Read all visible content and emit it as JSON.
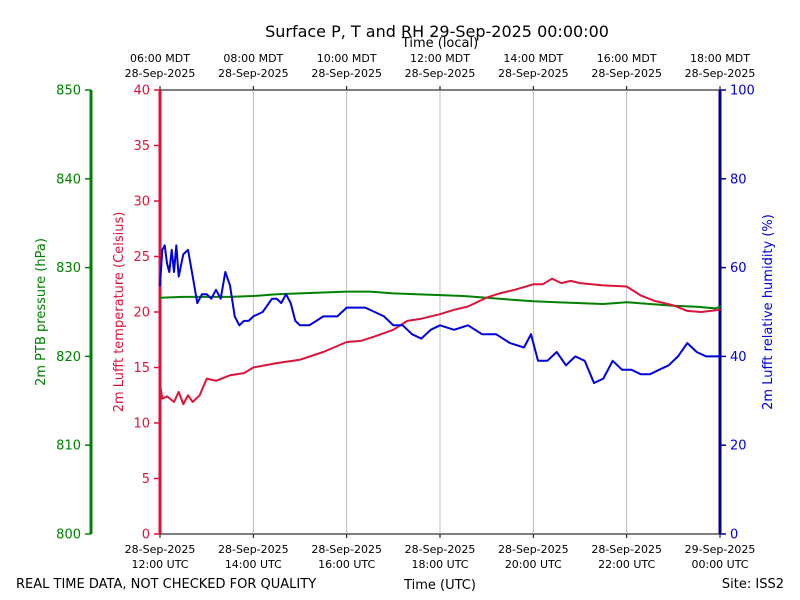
{
  "chart_data": {
    "type": "line",
    "title": "Surface P, T and RH 29-Sep-2025 00:00:00",
    "top_axis_label": "Time (local)",
    "xlabel": "Time (UTC)",
    "xlim_utc_hours": [
      12,
      24
    ],
    "top_ticks": [
      {
        "time": "06:00 MDT",
        "date": "28-Sep-2025"
      },
      {
        "time": "08:00 MDT",
        "date": "28-Sep-2025"
      },
      {
        "time": "10:00 MDT",
        "date": "28-Sep-2025"
      },
      {
        "time": "12:00 MDT",
        "date": "28-Sep-2025"
      },
      {
        "time": "14:00 MDT",
        "date": "28-Sep-2025"
      },
      {
        "time": "16:00 MDT",
        "date": "28-Sep-2025"
      },
      {
        "time": "18:00 MDT",
        "date": "28-Sep-2025"
      }
    ],
    "bottom_ticks": [
      {
        "date": "28-Sep-2025",
        "time": "12:00 UTC"
      },
      {
        "date": "28-Sep-2025",
        "time": "14:00 UTC"
      },
      {
        "date": "28-Sep-2025",
        "time": "16:00 UTC"
      },
      {
        "date": "28-Sep-2025",
        "time": "18:00 UTC"
      },
      {
        "date": "28-Sep-2025",
        "time": "20:00 UTC"
      },
      {
        "date": "28-Sep-2025",
        "time": "22:00 UTC"
      },
      {
        "date": "29-Sep-2025",
        "time": "00:00 UTC"
      }
    ],
    "axes": {
      "pressure": {
        "label": "2m PTB pressure (hPa)",
        "ylim": [
          800,
          850
        ],
        "ticks": [
          "800",
          "810",
          "820",
          "830",
          "840",
          "850"
        ],
        "color": "#008000"
      },
      "temperature": {
        "label": "2m Lufft temperature (Celsius)",
        "ylim": [
          0,
          40
        ],
        "ticks": [
          "0",
          "5",
          "10",
          "15",
          "20",
          "25",
          "30",
          "35",
          "40"
        ],
        "color": "#dc143c"
      },
      "humidity": {
        "label": "2m Lufft relative humidity (%)",
        "ylim": [
          0,
          100
        ],
        "ticks": [
          "0",
          "20",
          "40",
          "60",
          "80",
          "100"
        ],
        "color": "#0000dd"
      }
    },
    "series": [
      {
        "name": "2m PTB pressure",
        "axis": "pressure",
        "color": "#008000",
        "x": [
          12.0,
          12.5,
          13.0,
          13.5,
          14.0,
          14.5,
          15.0,
          15.5,
          16.0,
          16.5,
          17.0,
          17.5,
          18.0,
          18.5,
          19.0,
          19.5,
          20.0,
          20.5,
          21.0,
          21.5,
          22.0,
          22.5,
          23.0,
          23.5,
          23.9,
          24.0
        ],
        "values": [
          826.6,
          826.7,
          826.7,
          826.7,
          826.8,
          827.0,
          827.1,
          827.2,
          827.3,
          827.3,
          827.1,
          827.0,
          826.9,
          826.8,
          826.6,
          826.4,
          826.2,
          826.1,
          826.0,
          825.9,
          826.1,
          825.9,
          825.7,
          825.6,
          825.4,
          825.6
        ]
      },
      {
        "name": "2m Lufft temperature",
        "axis": "temperature",
        "color": "#dc143c",
        "x": [
          12.0,
          12.05,
          12.15,
          12.3,
          12.4,
          12.5,
          12.6,
          12.7,
          12.85,
          13.0,
          13.2,
          13.5,
          13.8,
          14.0,
          14.5,
          15.0,
          15.5,
          16.0,
          16.3,
          16.6,
          17.0,
          17.3,
          17.6,
          18.0,
          18.3,
          18.6,
          19.0,
          19.3,
          19.6,
          20.0,
          20.2,
          20.4,
          20.6,
          20.8,
          21.0,
          21.5,
          22.0,
          22.3,
          22.6,
          23.0,
          23.3,
          23.6,
          24.0
        ],
        "values": [
          13.5,
          12.2,
          12.4,
          11.9,
          12.8,
          11.7,
          12.5,
          11.9,
          12.5,
          14.0,
          13.8,
          14.3,
          14.5,
          15.0,
          15.4,
          15.7,
          16.4,
          17.3,
          17.4,
          17.8,
          18.4,
          19.2,
          19.4,
          19.8,
          20.2,
          20.5,
          21.3,
          21.7,
          22.0,
          22.5,
          22.5,
          23.0,
          22.6,
          22.8,
          22.6,
          22.4,
          22.3,
          21.5,
          21.0,
          20.6,
          20.1,
          20.0,
          20.2
        ]
      },
      {
        "name": "2m Lufft relative humidity",
        "axis": "humidity",
        "color": "#0000dd",
        "x": [
          12.0,
          12.05,
          12.1,
          12.15,
          12.2,
          12.25,
          12.3,
          12.35,
          12.4,
          12.5,
          12.6,
          12.7,
          12.8,
          12.9,
          13.0,
          13.1,
          13.2,
          13.3,
          13.4,
          13.5,
          13.6,
          13.7,
          13.8,
          13.9,
          14.0,
          14.2,
          14.4,
          14.5,
          14.6,
          14.7,
          14.8,
          14.9,
          15.0,
          15.2,
          15.5,
          15.8,
          16.0,
          16.2,
          16.4,
          16.6,
          16.8,
          17.0,
          17.2,
          17.4,
          17.6,
          17.8,
          18.0,
          18.3,
          18.6,
          18.9,
          19.2,
          19.5,
          19.8,
          19.95,
          20.1,
          20.3,
          20.5,
          20.7,
          20.9,
          21.1,
          21.3,
          21.5,
          21.7,
          21.9,
          22.1,
          22.3,
          22.5,
          22.7,
          22.9,
          23.1,
          23.3,
          23.5,
          23.7,
          23.9,
          24.0
        ],
        "values": [
          56,
          64,
          65,
          61,
          59,
          64,
          59,
          65,
          58,
          63,
          64,
          58,
          52,
          54,
          54,
          53,
          55,
          53,
          59,
          56,
          49,
          47,
          48,
          48,
          49,
          50,
          53,
          53,
          52,
          54,
          52,
          48,
          47,
          47,
          49,
          49,
          51,
          51,
          51,
          50,
          49,
          47,
          47,
          45,
          44,
          46,
          47,
          46,
          47,
          45,
          45,
          43,
          42,
          45,
          39,
          39,
          41,
          38,
          40,
          39,
          34,
          35,
          39,
          37,
          37,
          36,
          36,
          37,
          38,
          40,
          43,
          41,
          40,
          40,
          40
        ]
      }
    ],
    "gridlines": "vertical"
  },
  "footer": {
    "left": "REAL TIME DATA, NOT CHECKED FOR QUALITY",
    "right": "Site: ISS2"
  }
}
